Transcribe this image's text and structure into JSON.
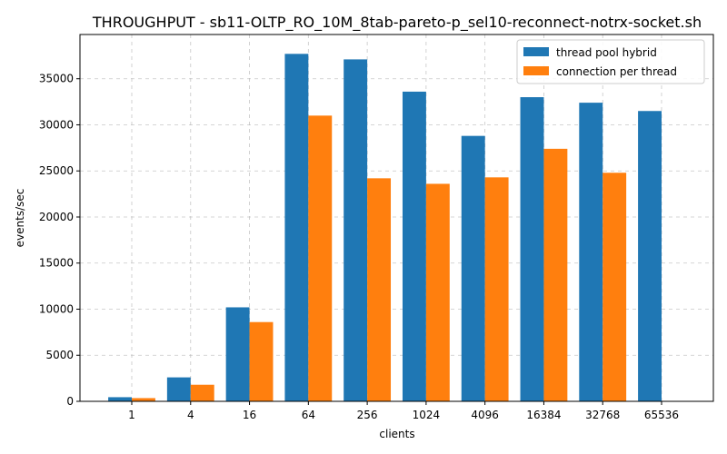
{
  "chart_data": {
    "type": "bar",
    "title": "THROUGHPUT - sb11-OLTP_RO_10M_8tab-pareto-p_sel10-reconnect-notrx-socket.sh",
    "xlabel": "clients",
    "ylabel": "events/sec",
    "categories": [
      "1",
      "4",
      "16",
      "64",
      "256",
      "1024",
      "4096",
      "16384",
      "32768",
      "65536"
    ],
    "ylim": [
      0,
      39800
    ],
    "yticks": [
      0,
      5000,
      10000,
      15000,
      20000,
      25000,
      30000,
      35000
    ],
    "grid": true,
    "legend_position": "top-right",
    "series": [
      {
        "name": "thread pool hybrid",
        "color": "#1f77b4",
        "values": [
          450,
          2600,
          10200,
          37700,
          37100,
          33600,
          28800,
          33000,
          32400,
          31500
        ]
      },
      {
        "name": "connection per thread",
        "color": "#ff7f0e",
        "values": [
          350,
          1800,
          8600,
          31000,
          24200,
          23600,
          24300,
          27400,
          24800,
          0
        ]
      }
    ]
  }
}
